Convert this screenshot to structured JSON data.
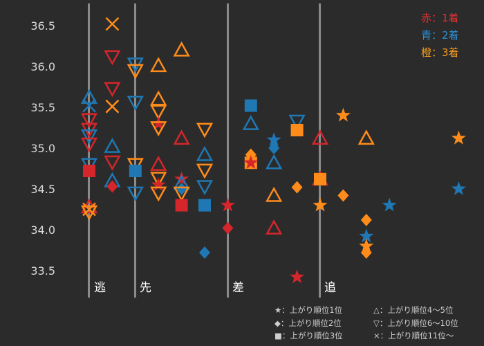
{
  "chart_data": {
    "type": "scatter",
    "title": "",
    "xlabel": "",
    "ylabel": "",
    "ylim": [
      33.5,
      36.5
    ],
    "y_ticks": [
      "36.5",
      "36.0",
      "35.5",
      "35.0",
      "34.5",
      "34.0",
      "33.5"
    ],
    "sections": [
      "逃",
      "先",
      "差",
      "追"
    ],
    "color_legend": [
      {
        "text": "赤：1着",
        "color": "#e03030"
      },
      {
        "text": "青：2着",
        "color": "#2b8fd6"
      },
      {
        "text": "橙：3着",
        "color": "#f39a1e"
      }
    ],
    "shape_legend": [
      {
        "text": "★：上がり順位1位"
      },
      {
        "text": "△：上がり順位4～5位"
      },
      {
        "text": "◆：上がり順位2位"
      },
      {
        "text": "▽：上がり順位6～10位"
      },
      {
        "text": "■：上がり順位3位"
      },
      {
        "text": "×：上がり順位11位～"
      }
    ],
    "colors": {
      "red": "#d4262b",
      "blue": "#1f78b4",
      "orange": "#ff8c1a",
      "background": "#2b2b2b"
    },
    "points": [
      {
        "x": 0.0,
        "y": 35.52,
        "shape": "x",
        "color": "blue"
      },
      {
        "x": 0.0,
        "y": 35.62,
        "shape": "tu",
        "color": "blue"
      },
      {
        "x": 0.0,
        "y": 35.35,
        "shape": "td",
        "color": "red"
      },
      {
        "x": 0.0,
        "y": 35.23,
        "shape": "td",
        "color": "red"
      },
      {
        "x": 0.0,
        "y": 35.15,
        "shape": "td",
        "color": "blue"
      },
      {
        "x": 0.0,
        "y": 35.05,
        "shape": "td",
        "color": "red"
      },
      {
        "x": 0.0,
        "y": 34.8,
        "shape": "td",
        "color": "blue"
      },
      {
        "x": 0.0,
        "y": 34.72,
        "shape": "sq",
        "color": "red"
      },
      {
        "x": 0.0,
        "y": 34.28,
        "shape": "tu",
        "color": "red"
      },
      {
        "x": 0.0,
        "y": 34.22,
        "shape": "td",
        "color": "orange"
      },
      {
        "x": 0.0,
        "y": 34.25,
        "shape": "x",
        "color": "orange"
      },
      {
        "x": 1.0,
        "y": 36.52,
        "shape": "x",
        "color": "orange"
      },
      {
        "x": 1.0,
        "y": 36.12,
        "shape": "td",
        "color": "red"
      },
      {
        "x": 1.0,
        "y": 35.73,
        "shape": "td",
        "color": "red"
      },
      {
        "x": 1.0,
        "y": 35.51,
        "shape": "x",
        "color": "orange"
      },
      {
        "x": 1.0,
        "y": 35.02,
        "shape": "tu",
        "color": "blue"
      },
      {
        "x": 1.0,
        "y": 34.83,
        "shape": "td",
        "color": "red"
      },
      {
        "x": 1.0,
        "y": 34.6,
        "shape": "tu",
        "color": "blue"
      },
      {
        "x": 1.0,
        "y": 34.53,
        "shape": "dia",
        "color": "red"
      },
      {
        "x": 2.0,
        "y": 36.03,
        "shape": "td",
        "color": "blue"
      },
      {
        "x": 2.0,
        "y": 35.95,
        "shape": "td",
        "color": "orange"
      },
      {
        "x": 2.0,
        "y": 35.56,
        "shape": "td",
        "color": "blue"
      },
      {
        "x": 2.0,
        "y": 34.8,
        "shape": "td",
        "color": "orange"
      },
      {
        "x": 2.0,
        "y": 34.72,
        "shape": "sq",
        "color": "blue"
      },
      {
        "x": 2.0,
        "y": 34.45,
        "shape": "td",
        "color": "blue"
      },
      {
        "x": 3.0,
        "y": 36.01,
        "shape": "tu",
        "color": "orange"
      },
      {
        "x": 3.0,
        "y": 35.6,
        "shape": "tu",
        "color": "orange"
      },
      {
        "x": 3.0,
        "y": 35.45,
        "shape": "td",
        "color": "orange"
      },
      {
        "x": 3.0,
        "y": 35.3,
        "shape": "star",
        "color": "red"
      },
      {
        "x": 3.0,
        "y": 35.25,
        "shape": "td",
        "color": "orange"
      },
      {
        "x": 3.0,
        "y": 34.8,
        "shape": "tu",
        "color": "red"
      },
      {
        "x": 3.0,
        "y": 34.63,
        "shape": "td",
        "color": "orange"
      },
      {
        "x": 3.0,
        "y": 34.55,
        "shape": "star",
        "color": "red"
      },
      {
        "x": 3.0,
        "y": 34.45,
        "shape": "td",
        "color": "orange"
      },
      {
        "x": 4.0,
        "y": 36.2,
        "shape": "tu",
        "color": "orange"
      },
      {
        "x": 4.0,
        "y": 35.12,
        "shape": "tu",
        "color": "red"
      },
      {
        "x": 4.0,
        "y": 34.62,
        "shape": "star",
        "color": "red"
      },
      {
        "x": 4.0,
        "y": 34.57,
        "shape": "tu",
        "color": "blue"
      },
      {
        "x": 4.0,
        "y": 34.5,
        "shape": "dia",
        "color": "blue"
      },
      {
        "x": 4.0,
        "y": 34.45,
        "shape": "td",
        "color": "orange"
      },
      {
        "x": 4.0,
        "y": 34.3,
        "shape": "sq",
        "color": "red"
      },
      {
        "x": 5.0,
        "y": 35.23,
        "shape": "td",
        "color": "orange"
      },
      {
        "x": 5.0,
        "y": 34.92,
        "shape": "tu",
        "color": "blue"
      },
      {
        "x": 5.0,
        "y": 34.73,
        "shape": "td",
        "color": "orange"
      },
      {
        "x": 5.0,
        "y": 34.53,
        "shape": "td",
        "color": "blue"
      },
      {
        "x": 5.0,
        "y": 34.3,
        "shape": "sq",
        "color": "blue"
      },
      {
        "x": 5.0,
        "y": 33.72,
        "shape": "dia",
        "color": "blue"
      },
      {
        "x": 6.0,
        "y": 34.3,
        "shape": "star",
        "color": "red"
      },
      {
        "x": 6.0,
        "y": 34.02,
        "shape": "dia",
        "color": "red"
      },
      {
        "x": 7.0,
        "y": 35.52,
        "shape": "sq",
        "color": "blue"
      },
      {
        "x": 7.0,
        "y": 35.3,
        "shape": "tu",
        "color": "blue"
      },
      {
        "x": 7.0,
        "y": 34.92,
        "shape": "dia",
        "color": "orange"
      },
      {
        "x": 7.0,
        "y": 34.82,
        "shape": "sq",
        "color": "orange"
      },
      {
        "x": 7.0,
        "y": 34.82,
        "shape": "star",
        "color": "red"
      },
      {
        "x": 8.0,
        "y": 35.1,
        "shape": "star",
        "color": "blue"
      },
      {
        "x": 8.0,
        "y": 35.0,
        "shape": "dia",
        "color": "blue"
      },
      {
        "x": 8.0,
        "y": 34.82,
        "shape": "tu",
        "color": "blue"
      },
      {
        "x": 8.0,
        "y": 34.42,
        "shape": "tu",
        "color": "orange"
      },
      {
        "x": 8.0,
        "y": 34.02,
        "shape": "tu",
        "color": "red"
      },
      {
        "x": 9.0,
        "y": 35.33,
        "shape": "td",
        "color": "blue"
      },
      {
        "x": 9.0,
        "y": 35.22,
        "shape": "sq",
        "color": "orange"
      },
      {
        "x": 9.0,
        "y": 34.52,
        "shape": "dia",
        "color": "orange"
      },
      {
        "x": 9.0,
        "y": 33.42,
        "shape": "star",
        "color": "red"
      },
      {
        "x": 10.0,
        "y": 35.12,
        "shape": "tu",
        "color": "red"
      },
      {
        "x": 10.0,
        "y": 34.62,
        "shape": "tu",
        "color": "red"
      },
      {
        "x": 10.0,
        "y": 34.62,
        "shape": "sq",
        "color": "orange"
      },
      {
        "x": 10.0,
        "y": 34.3,
        "shape": "star",
        "color": "orange"
      },
      {
        "x": 11.0,
        "y": 35.4,
        "shape": "star",
        "color": "orange"
      },
      {
        "x": 11.0,
        "y": 34.42,
        "shape": "dia",
        "color": "orange"
      },
      {
        "x": 12.0,
        "y": 35.12,
        "shape": "tu",
        "color": "orange"
      },
      {
        "x": 12.0,
        "y": 34.12,
        "shape": "dia",
        "color": "orange"
      },
      {
        "x": 12.0,
        "y": 33.92,
        "shape": "star",
        "color": "blue"
      },
      {
        "x": 12.0,
        "y": 33.8,
        "shape": "star",
        "color": "orange"
      },
      {
        "x": 12.0,
        "y": 33.72,
        "shape": "dia",
        "color": "orange"
      },
      {
        "x": 13.0,
        "y": 34.3,
        "shape": "star",
        "color": "blue"
      },
      {
        "x": 16.0,
        "y": 35.12,
        "shape": "star",
        "color": "orange"
      },
      {
        "x": 16.0,
        "y": 34.5,
        "shape": "star",
        "color": "blue"
      }
    ]
  }
}
